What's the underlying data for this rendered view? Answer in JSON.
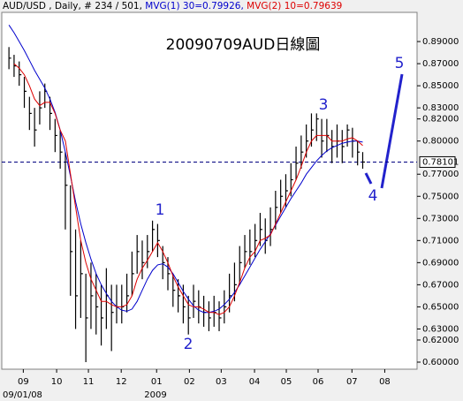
{
  "chart_data": {
    "type": "ohlc",
    "header": {
      "symbol": "AUD/USD , Daily, # 234 / 501,",
      "ma1": "MVG(1) 30=0.79926,",
      "ma2": "MVG(2) 10=0.79639"
    },
    "title": "20090709AUD日線圖",
    "date_start": "09/01/08",
    "year_label": "2009",
    "annotations": [
      "1",
      "2",
      "3",
      "4",
      "5"
    ],
    "xlim": [
      -1.4,
      79.6
    ],
    "xticks": [
      {
        "value": 2.8,
        "label": "09"
      },
      {
        "value": 9.3,
        "label": "10"
      },
      {
        "value": 15.5,
        "label": "11"
      },
      {
        "value": 21.9,
        "label": "12"
      },
      {
        "value": 28.8,
        "label": "01"
      },
      {
        "value": 35.2,
        "label": "02"
      },
      {
        "value": 41.4,
        "label": "03"
      },
      {
        "value": 47.9,
        "label": "04"
      },
      {
        "value": 54.1,
        "label": "05"
      },
      {
        "value": 60.3,
        "label": "06"
      },
      {
        "value": 66.9,
        "label": "07"
      },
      {
        "value": 73.3,
        "label": "08"
      }
    ],
    "ylim": [
      0.5936,
      0.9164
    ],
    "yticks": [
      {
        "value": 0.89,
        "label": "0.89000"
      },
      {
        "value": 0.87,
        "label": "0.87000"
      },
      {
        "value": 0.85,
        "label": "0.85000"
      },
      {
        "value": 0.83,
        "label": "0.83000"
      },
      {
        "value": 0.82,
        "label": "0.82000"
      },
      {
        "value": 0.8,
        "label": "0.80000"
      },
      {
        "value": 0.77,
        "label": "0.77000"
      },
      {
        "value": 0.75,
        "label": "0.75000"
      },
      {
        "value": 0.73,
        "label": "0.73000"
      },
      {
        "value": 0.71,
        "label": "0.71000"
      },
      {
        "value": 0.69,
        "label": "0.69000"
      },
      {
        "value": 0.67,
        "label": "0.67000"
      },
      {
        "value": 0.65,
        "label": "0.65000"
      },
      {
        "value": 0.63,
        "label": "0.63000"
      },
      {
        "value": 0.62,
        "label": "0.62000"
      },
      {
        "value": 0.6,
        "label": "0.60000"
      }
    ],
    "last_price": {
      "value": 0.78101,
      "label": "0.78101"
    },
    "bar_color": "#000000",
    "high": [
      0.885,
      0.878,
      0.872,
      0.858,
      0.84,
      0.83,
      0.845,
      0.852,
      0.84,
      0.82,
      0.81,
      0.79,
      0.76,
      0.72,
      0.71,
      0.68,
      0.69,
      0.68,
      0.67,
      0.685,
      0.67,
      0.67,
      0.67,
      0.68,
      0.7,
      0.715,
      0.71,
      0.715,
      0.728,
      0.725,
      0.705,
      0.695,
      0.68,
      0.675,
      0.67,
      0.66,
      0.67,
      0.665,
      0.66,
      0.655,
      0.66,
      0.655,
      0.665,
      0.68,
      0.69,
      0.705,
      0.715,
      0.72,
      0.725,
      0.735,
      0.73,
      0.74,
      0.755,
      0.765,
      0.77,
      0.78,
      0.795,
      0.805,
      0.815,
      0.825,
      0.825,
      0.82,
      0.82,
      0.81,
      0.815,
      0.81,
      0.815,
      0.812,
      0.8,
      0.79
    ],
    "low": [
      0.865,
      0.858,
      0.85,
      0.83,
      0.81,
      0.795,
      0.815,
      0.83,
      0.81,
      0.79,
      0.775,
      0.72,
      0.66,
      0.63,
      0.64,
      0.6,
      0.63,
      0.625,
      0.615,
      0.63,
      0.61,
      0.635,
      0.635,
      0.645,
      0.66,
      0.68,
      0.675,
      0.685,
      0.7,
      0.695,
      0.675,
      0.665,
      0.65,
      0.645,
      0.635,
      0.625,
      0.64,
      0.635,
      0.632,
      0.628,
      0.632,
      0.628,
      0.635,
      0.645,
      0.655,
      0.67,
      0.685,
      0.688,
      0.695,
      0.705,
      0.698,
      0.705,
      0.72,
      0.735,
      0.74,
      0.75,
      0.765,
      0.775,
      0.785,
      0.795,
      0.8,
      0.785,
      0.79,
      0.78,
      0.785,
      0.78,
      0.795,
      0.785,
      0.778,
      0.775
    ],
    "close": [
      0.875,
      0.868,
      0.86,
      0.845,
      0.825,
      0.81,
      0.83,
      0.845,
      0.825,
      0.805,
      0.79,
      0.76,
      0.7,
      0.66,
      0.68,
      0.64,
      0.66,
      0.65,
      0.64,
      0.66,
      0.645,
      0.65,
      0.65,
      0.66,
      0.68,
      0.7,
      0.69,
      0.7,
      0.72,
      0.71,
      0.69,
      0.68,
      0.665,
      0.66,
      0.65,
      0.64,
      0.655,
      0.65,
      0.645,
      0.64,
      0.645,
      0.64,
      0.65,
      0.66,
      0.67,
      0.69,
      0.7,
      0.7,
      0.71,
      0.72,
      0.71,
      0.72,
      0.74,
      0.75,
      0.755,
      0.765,
      0.78,
      0.79,
      0.8,
      0.81,
      0.82,
      0.8,
      0.805,
      0.795,
      0.8,
      0.795,
      0.81,
      0.8,
      0.79,
      0.781
    ],
    "series": [
      {
        "name": "MVG(1) 30",
        "color": "#0000cc",
        "values": [
          0.905,
          0.898,
          0.89,
          0.882,
          0.873,
          0.864,
          0.856,
          0.848,
          0.838,
          0.826,
          0.81,
          0.79,
          0.768,
          0.745,
          0.725,
          0.708,
          0.693,
          0.68,
          0.67,
          0.662,
          0.655,
          0.65,
          0.647,
          0.646,
          0.648,
          0.655,
          0.665,
          0.675,
          0.683,
          0.688,
          0.689,
          0.686,
          0.68,
          0.672,
          0.664,
          0.657,
          0.651,
          0.647,
          0.645,
          0.645,
          0.646,
          0.648,
          0.652,
          0.657,
          0.663,
          0.67,
          0.678,
          0.686,
          0.694,
          0.702,
          0.709,
          0.716,
          0.724,
          0.732,
          0.74,
          0.748,
          0.755,
          0.762,
          0.77,
          0.776,
          0.782,
          0.787,
          0.791,
          0.794,
          0.796,
          0.798,
          0.799,
          0.8,
          0.8,
          0.799
        ]
      },
      {
        "name": "MVG(2) 10",
        "color": "#dd0000",
        "values": [
          null,
          0.87,
          0.866,
          0.86,
          0.85,
          0.838,
          0.832,
          0.835,
          0.835,
          0.825,
          0.81,
          0.8,
          0.77,
          0.74,
          0.71,
          0.69,
          0.675,
          0.665,
          0.655,
          0.655,
          0.652,
          0.65,
          0.65,
          0.652,
          0.66,
          0.675,
          0.685,
          0.692,
          0.7,
          0.708,
          0.7,
          0.69,
          0.678,
          0.668,
          0.66,
          0.652,
          0.65,
          0.65,
          0.648,
          0.645,
          0.645,
          0.643,
          0.645,
          0.65,
          0.66,
          0.672,
          0.685,
          0.695,
          0.7,
          0.71,
          0.712,
          0.715,
          0.725,
          0.735,
          0.745,
          0.755,
          0.765,
          0.777,
          0.79,
          0.8,
          0.805,
          0.805,
          0.805,
          0.8,
          0.8,
          0.8,
          0.802,
          0.803,
          0.8,
          0.796
        ]
      }
    ]
  }
}
